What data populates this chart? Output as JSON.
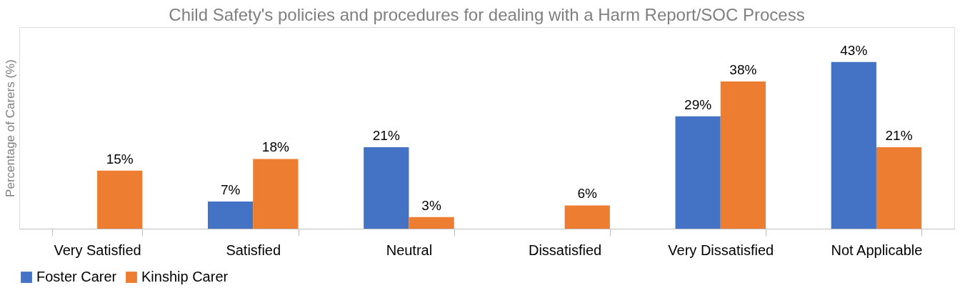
{
  "chart_data": {
    "type": "bar",
    "title": "Child Safety's policies and procedures for dealing with a Harm Report/SOC Process",
    "ylabel": "Percentage of Carers (%)",
    "categories": [
      "Very Satisfied",
      "Satisfied",
      "Neutral",
      "Dissatisfied",
      "Very Dissatisfied",
      "Not Applicable"
    ],
    "series": [
      {
        "name": "Foster Carer",
        "color": "#4472c4",
        "values": [
          null,
          7,
          21,
          null,
          29,
          43
        ],
        "value_labels": [
          null,
          "7%",
          "21%",
          null,
          "29%",
          "43%"
        ]
      },
      {
        "name": "Kinship Carer",
        "color": "#ed7d31",
        "values": [
          15,
          18,
          3,
          6,
          38,
          21
        ],
        "value_labels": [
          "15%",
          "18%",
          "3%",
          "6%",
          "38%",
          "21%"
        ]
      }
    ],
    "ylim": [
      0,
      52
    ],
    "grid": false,
    "legend": "bottom",
    "tick_labels": "x"
  }
}
